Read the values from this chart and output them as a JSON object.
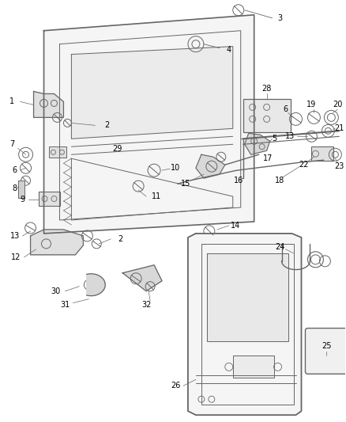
{
  "background_color": "#ffffff",
  "line_color": "#666666",
  "text_color": "#000000",
  "figsize": [
    4.38,
    5.33
  ],
  "dpi": 100
}
